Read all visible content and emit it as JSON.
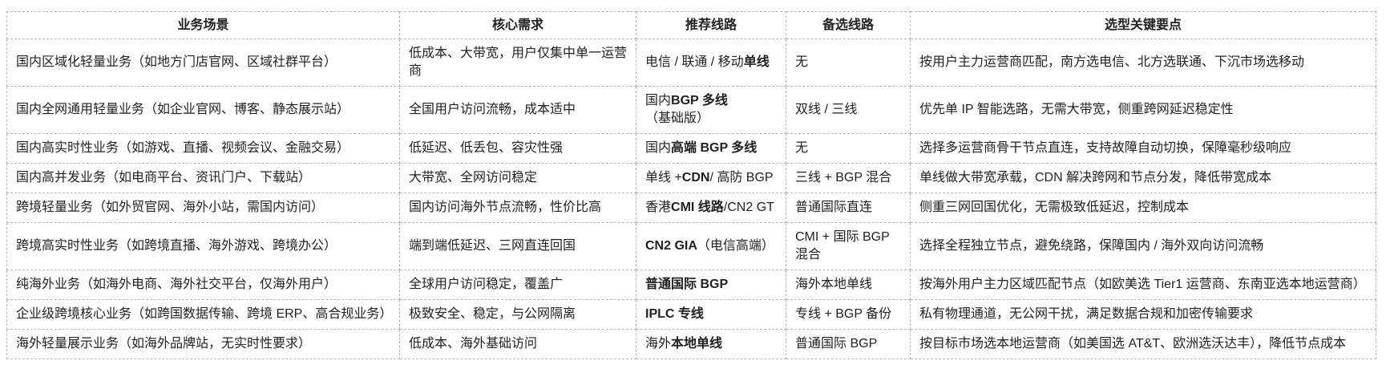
{
  "colors": {
    "border": "#b7b7b7",
    "text": "#222222",
    "background": "#ffffff"
  },
  "table": {
    "headers": [
      "业务场景",
      "核心需求",
      "推荐线路",
      "备选线路",
      "选型关键要点"
    ],
    "rows": [
      {
        "scenario": "国内区域化轻量业务（如地方门店官网、区域社群平台）",
        "needs": "低成本、大带宽，用户仅集中单一运营商",
        "recommended": [
          {
            "text": "电信 / 联通 / 移动",
            "bold": false
          },
          {
            "text": "单线",
            "bold": true
          }
        ],
        "alternative": "无",
        "keypoints": "按用户主力运营商匹配，南方选电信、北方选联通、下沉市场选移动"
      },
      {
        "scenario": "国内全网通用轻量业务（如企业官网、博客、静态展示站）",
        "needs": "全国用户访问流畅，成本适中",
        "recommended": [
          {
            "text": "国内",
            "bold": false
          },
          {
            "text": "BGP 多线",
            "bold": true
          },
          {
            "text": "\n（基础版）",
            "bold": false
          }
        ],
        "alternative": "双线 / 三线",
        "keypoints": "优先单 IP 智能选路，无需大带宽，侧重跨网延迟稳定性"
      },
      {
        "scenario": "国内高实时性业务（如游戏、直播、视频会议、金融交易）",
        "needs": "低延迟、低丢包、容灾性强",
        "recommended": [
          {
            "text": "国内",
            "bold": false
          },
          {
            "text": "高端 BGP 多线",
            "bold": true
          }
        ],
        "alternative": "无",
        "keypoints": "选择多运营商骨干节点直连，支持故障自动切换，保障毫秒级响应"
      },
      {
        "scenario": "国内高并发业务（如电商平台、资讯门户、下载站）",
        "needs": "大带宽、全网访问稳定",
        "recommended": [
          {
            "text": "单线 +",
            "bold": false
          },
          {
            "text": "CDN",
            "bold": true
          },
          {
            "text": "/ 高防 BGP",
            "bold": false
          }
        ],
        "alternative": "三线 + BGP 混合",
        "keypoints": "单线做大带宽承载，CDN 解决跨网和节点分发，降低带宽成本"
      },
      {
        "scenario": "跨境轻量业务（如外贸官网、海外小站，需国内访问）",
        "needs": "国内访问海外节点流畅，性价比高",
        "recommended": [
          {
            "text": "香港",
            "bold": false
          },
          {
            "text": "CMI 线路",
            "bold": true
          },
          {
            "text": "/CN2 GT",
            "bold": false
          }
        ],
        "alternative": "普通国际直连",
        "keypoints": "侧重三网回国优化，无需极致低延迟，控制成本"
      },
      {
        "scenario": "跨境高实时性业务（如跨境直播、海外游戏、跨境办公）",
        "needs": "端到端低延迟、三网直连回国",
        "recommended": [
          {
            "text": "CN2 GIA",
            "bold": true
          },
          {
            "text": "（电信高端）",
            "bold": false
          }
        ],
        "alternative": "CMI + 国际 BGP 混合",
        "keypoints": "选择全程独立节点，避免绕路，保障国内 / 海外双向访问流畅"
      },
      {
        "scenario": "纯海外业务（如海外电商、海外社交平台，仅海外用户）",
        "needs": "全球用户访问稳定，覆盖广",
        "recommended": [
          {
            "text": "普通国际 BGP",
            "bold": true
          }
        ],
        "alternative": "海外本地单线",
        "keypoints": "按海外用户主力区域匹配节点（如欧美选 Tier1 运营商、东南亚选本地运营商）"
      },
      {
        "scenario": "企业级跨境核心业务（如跨国数据传输、跨境 ERP、高合规业务）",
        "needs": "极致安全、稳定，与公网隔离",
        "recommended": [
          {
            "text": "IPLC 专线",
            "bold": true
          }
        ],
        "alternative": "专线 + BGP 备份",
        "keypoints": "私有物理通道，无公网干扰，满足数据合规和加密传输要求"
      },
      {
        "scenario": "海外轻量展示业务（如海外品牌站，无实时性要求）",
        "needs": "低成本、海外基础访问",
        "recommended": [
          {
            "text": "海外",
            "bold": false
          },
          {
            "text": "本地单线",
            "bold": true
          }
        ],
        "alternative": "普通国际 BGP",
        "keypoints": "按目标市场选本地运营商（如美国选 AT&T、欧洲选沃达丰），降低节点成本"
      }
    ]
  }
}
